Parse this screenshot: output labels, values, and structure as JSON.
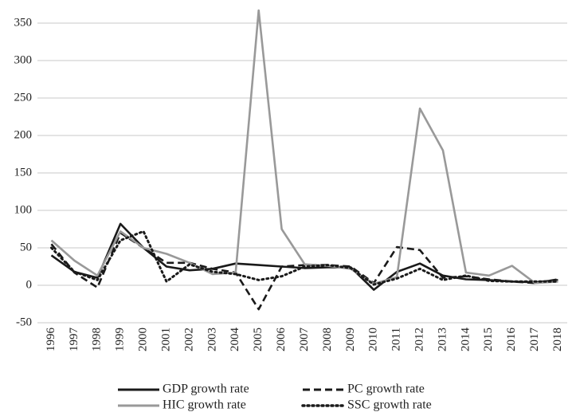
{
  "chart_data": {
    "type": "line",
    "categories": [
      "1996",
      "1997",
      "1998",
      "1999",
      "2000",
      "2001",
      "2002",
      "2003",
      "2004",
      "2005",
      "2006",
      "2007",
      "2008",
      "2009",
      "2010",
      "2011",
      "2012",
      "2013",
      "2014",
      "2015",
      "2016",
      "2017",
      "2018"
    ],
    "series": [
      {
        "name": "GDP growth rate",
        "color": "#1a1a1a",
        "line_style": "solid",
        "values": [
          40,
          18,
          10,
          82,
          50,
          25,
          20,
          22,
          29,
          27,
          25,
          23,
          24,
          24,
          -6,
          18,
          29,
          13,
          8,
          7,
          5,
          4,
          7
        ]
      },
      {
        "name": "PC growth rate",
        "color": "#1a1a1a",
        "line_style": "dashed",
        "values": [
          55,
          17,
          -3,
          70,
          50,
          30,
          30,
          22,
          17,
          -32,
          25,
          27,
          27,
          25,
          3,
          51,
          47,
          10,
          12,
          8,
          5,
          3,
          8
        ]
      },
      {
        "name": "HIC growth rate",
        "color": "#999999",
        "line_style": "solid",
        "values": [
          60,
          33,
          13,
          72,
          50,
          42,
          30,
          15,
          17,
          367,
          75,
          28,
          26,
          22,
          2,
          11,
          236,
          180,
          17,
          13,
          26,
          3,
          5
        ]
      },
      {
        "name": "SSC growth rate",
        "color": "#1a1a1a",
        "line_style": "dotted",
        "values": [
          50,
          18,
          7,
          60,
          72,
          5,
          28,
          18,
          15,
          7,
          12,
          25,
          27,
          23,
          1,
          9,
          22,
          7,
          13,
          6,
          5,
          5,
          5
        ]
      }
    ],
    "ylim": [
      -50,
      370
    ],
    "yticks": [
      -50,
      0,
      50,
      100,
      150,
      200,
      250,
      300,
      350
    ],
    "grid": true
  }
}
